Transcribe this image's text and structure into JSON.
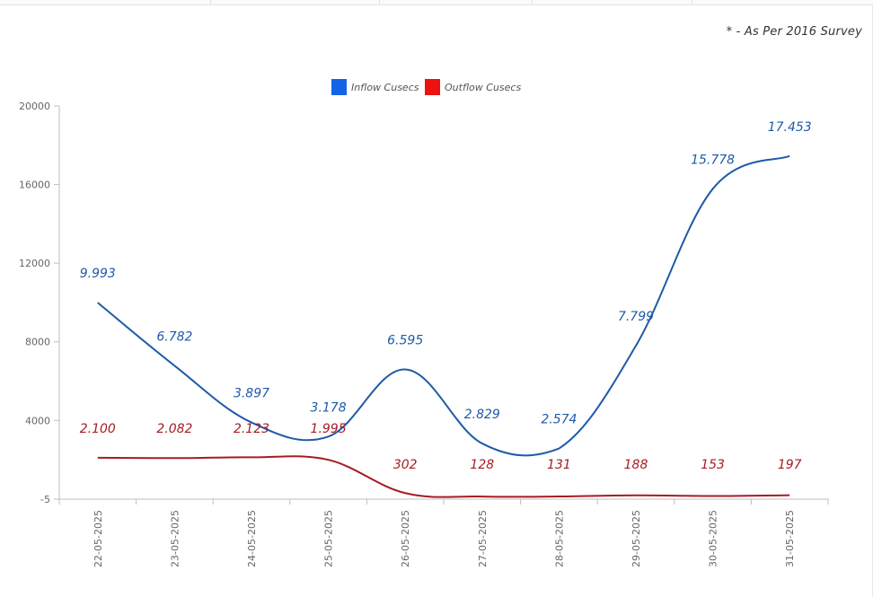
{
  "note": "* - As Per 2016 Survey",
  "chart_data": {
    "type": "line",
    "categories": [
      "22-05-2025",
      "23-05-2025",
      "24-05-2025",
      "25-05-2025",
      "26-05-2025",
      "27-05-2025",
      "28-05-2025",
      "29-05-2025",
      "30-05-2025",
      "31-05-2025"
    ],
    "series": [
      {
        "name": "Inflow Cusecs",
        "color": "#1f5aa8",
        "legend_color": "#1463e6",
        "values": [
          9993,
          6782,
          3897,
          3178,
          6595,
          2829,
          2574,
          7799,
          15778,
          17453
        ],
        "labels": [
          "9.993",
          "6.782",
          "3.897",
          "3.178",
          "6.595",
          "2.829",
          "2.574",
          "7.799",
          "15.778",
          "17.453"
        ]
      },
      {
        "name": "Outflow Cusecs",
        "color": "#a61c24",
        "legend_color": "#ee1111",
        "values": [
          2100,
          2082,
          2123,
          1995,
          302,
          128,
          131,
          188,
          153,
          197
        ],
        "labels": [
          "2.100",
          "2.082",
          "2.123",
          "1.995",
          "302",
          "128",
          "131",
          "188",
          "153",
          "197"
        ]
      }
    ],
    "y_ticks": [
      "20000",
      "16000",
      "12000",
      "8000",
      "4000",
      "-5"
    ],
    "ylim": [
      -5,
      20000
    ],
    "title": "",
    "xlabel": "",
    "ylabel": "",
    "legend_position": "top-center",
    "grid": false
  }
}
